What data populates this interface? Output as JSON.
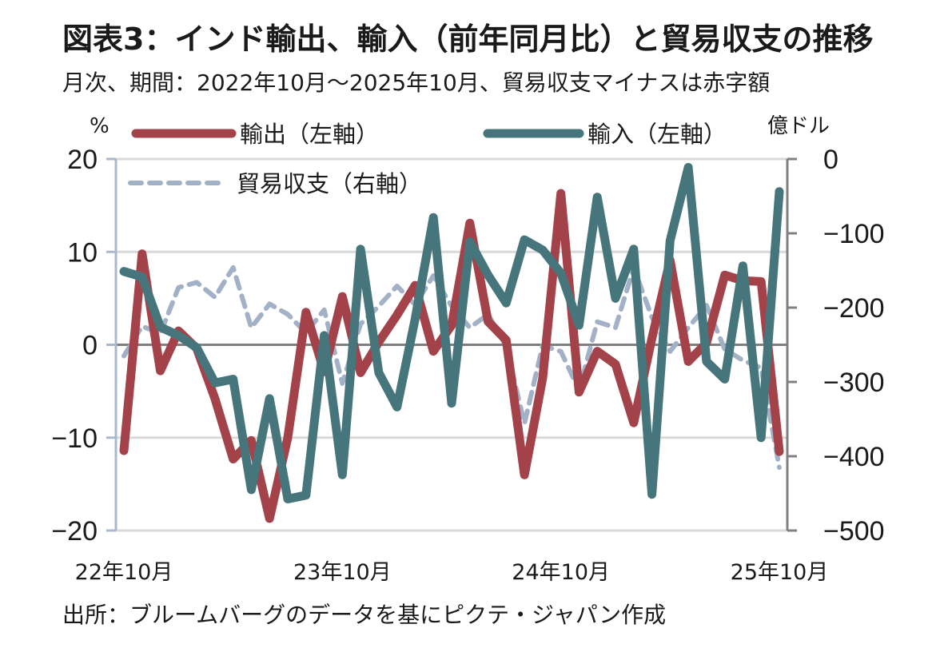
{
  "header": {
    "title": "図表3：インド輸出、輸入（前年同月比）と貿易収支の推移",
    "subtitle": "月次、期間：2022年10月～2025年10月、貿易収支マイナスは赤字額"
  },
  "footer": {
    "source": "出所：ブルームバーグのデータを基にピクテ・ジャパン作成"
  },
  "chart_data": {
    "type": "line",
    "title": "図表3：インド輸出、輸入（前年同月比）と貿易収支の推移",
    "left_axis": {
      "unit": "%",
      "ylim": [
        -20,
        20
      ],
      "ticks": [
        "20",
        "10",
        "0",
        "−10",
        "−20"
      ],
      "tick_values": [
        20,
        10,
        0,
        -10,
        -20
      ]
    },
    "right_axis": {
      "unit": "億ドル",
      "ylim": [
        -500,
        0
      ],
      "ticks": [
        "0",
        "−100",
        "−200",
        "−300",
        "−400",
        "−500"
      ],
      "tick_values": [
        0,
        -100,
        -200,
        -300,
        -400,
        -500
      ]
    },
    "x_tick_labels": [
      "22年10月",
      "23年10月",
      "24年10月",
      "25年10月"
    ],
    "x_tick_index": [
      0,
      12,
      24,
      36
    ],
    "grid": true,
    "legend_position": "top",
    "x": [
      "2022-10",
      "2022-11",
      "2022-12",
      "2023-01",
      "2023-02",
      "2023-03",
      "2023-04",
      "2023-05",
      "2023-06",
      "2023-07",
      "2023-08",
      "2023-09",
      "2023-10",
      "2023-11",
      "2023-12",
      "2024-01",
      "2024-02",
      "2024-03",
      "2024-04",
      "2024-05",
      "2024-06",
      "2024-07",
      "2024-08",
      "2024-09",
      "2024-10",
      "2024-11",
      "2024-12",
      "2025-01",
      "2025-02",
      "2025-03",
      "2025-04",
      "2025-05",
      "2025-06",
      "2025-07",
      "2025-08",
      "2025-09",
      "2025-10"
    ],
    "series": [
      {
        "name": "輸出（左軸）",
        "axis": "left",
        "color": "#a4424a",
        "style": "solid",
        "values": [
          -11.4,
          9.8,
          -2.8,
          1.5,
          -0.4,
          -5.8,
          -12.3,
          -10.3,
          -18.7,
          -10.0,
          3.5,
          -2.9,
          5.2,
          -3.0,
          0.3,
          3.2,
          6.4,
          -0.7,
          2.1,
          13.1,
          2.5,
          0.5,
          -14.0,
          -3.6,
          16.3,
          -5.1,
          -0.7,
          -2.1,
          -8.4,
          0.7,
          9.1,
          -1.8,
          0.2,
          7.5,
          6.9,
          6.8,
          -11.5
        ]
      },
      {
        "name": "輸入（左軸）",
        "axis": "left",
        "color": "#47757c",
        "style": "solid",
        "values": [
          7.9,
          7.3,
          1.9,
          1.0,
          -0.3,
          -4.1,
          -3.7,
          -15.6,
          -5.8,
          -16.6,
          -16.2,
          1.0,
          -14.0,
          10.3,
          -3.0,
          -6.7,
          2.8,
          13.7,
          -6.3,
          11.1,
          7.5,
          4.5,
          11.3,
          10.2,
          7.7,
          2.1,
          15.9,
          5.0,
          10.3,
          -16.1,
          11.2,
          19.1,
          -1.8,
          -3.7,
          8.5,
          -10.0,
          16.5
        ]
      },
      {
        "name": "貿易収支（右軸）",
        "axis": "right",
        "color": "#a2b1c6",
        "style": "dashed",
        "values": [
          -265,
          -225,
          -235,
          -173,
          -166,
          -186,
          -146,
          -227,
          -195,
          -209,
          -234,
          -203,
          -302,
          -222,
          -198,
          -171,
          -196,
          -157,
          -198,
          -227,
          -209,
          -252,
          -356,
          -251,
          -259,
          -311,
          -219,
          -227,
          -146,
          -213,
          -259,
          -227,
          -197,
          -256,
          -271,
          -281,
          -415
        ]
      }
    ]
  }
}
